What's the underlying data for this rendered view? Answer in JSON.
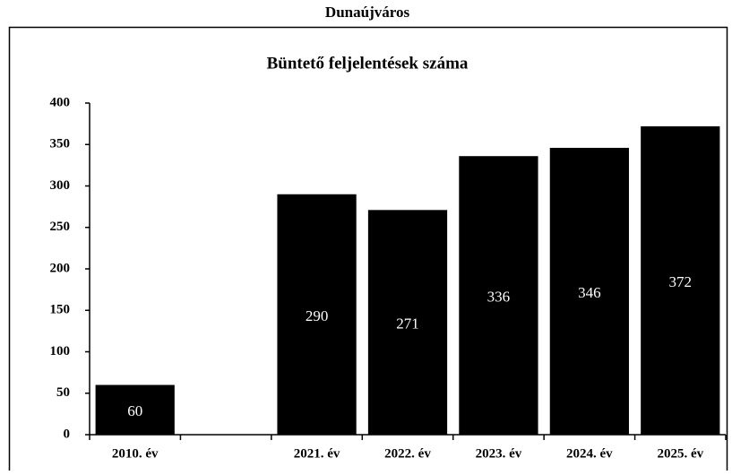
{
  "chart_data": {
    "type": "bar",
    "title": "Dunaújváros",
    "subtitle": "Büntető feljelentések száma",
    "categories": [
      "2010. év",
      null,
      "2021. év",
      "2022. év",
      "2023. év",
      "2024. év",
      "2025. év"
    ],
    "values": [
      60,
      null,
      290,
      271,
      336,
      346,
      372
    ],
    "color": "#000000",
    "ylim": [
      0,
      400
    ],
    "yticks": [
      0,
      50,
      100,
      150,
      200,
      250,
      300,
      350,
      400
    ],
    "grid": false
  }
}
